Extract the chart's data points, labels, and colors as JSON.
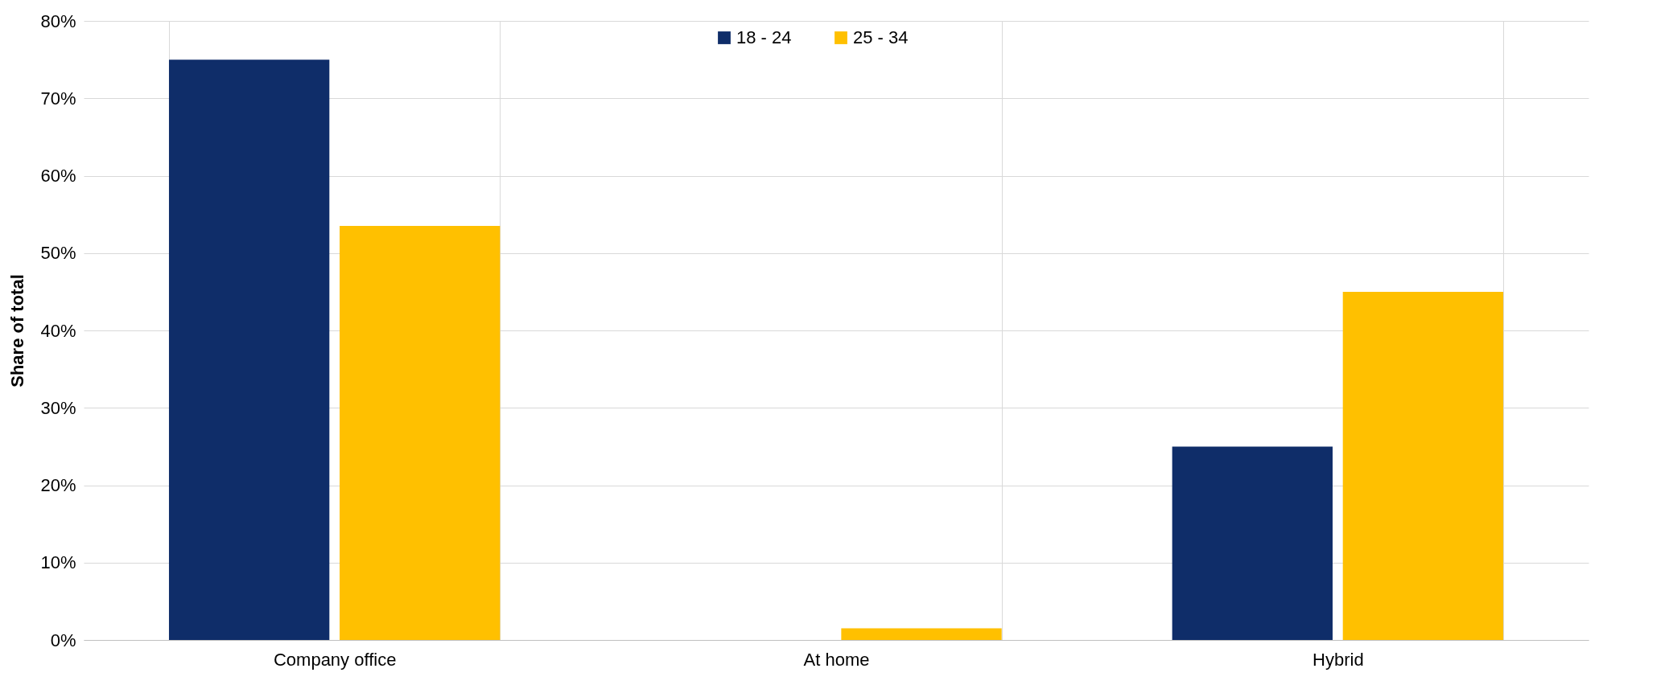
{
  "chart_data": {
    "type": "bar",
    "ylabel": "Share of total",
    "categories": [
      "Company office",
      "At home",
      "Hybrid"
    ],
    "series": [
      {
        "name": "18 - 24",
        "color": "#0f2d69",
        "values": [
          75,
          0,
          25
        ]
      },
      {
        "name": "25 - 34",
        "color": "#ffc000",
        "values": [
          53.5,
          1.5,
          45
        ]
      }
    ],
    "ylim": [
      0,
      80
    ],
    "yticks": [
      {
        "value": 0,
        "label": "0%"
      },
      {
        "value": 10,
        "label": "10%"
      },
      {
        "value": 20,
        "label": "20%"
      },
      {
        "value": 30,
        "label": "30%"
      },
      {
        "value": 40,
        "label": "40%"
      },
      {
        "value": 50,
        "label": "50%"
      },
      {
        "value": 60,
        "label": "60%"
      },
      {
        "value": 70,
        "label": "70%"
      },
      {
        "value": 80,
        "label": "80%"
      }
    ],
    "grid": true,
    "legend": "top"
  }
}
